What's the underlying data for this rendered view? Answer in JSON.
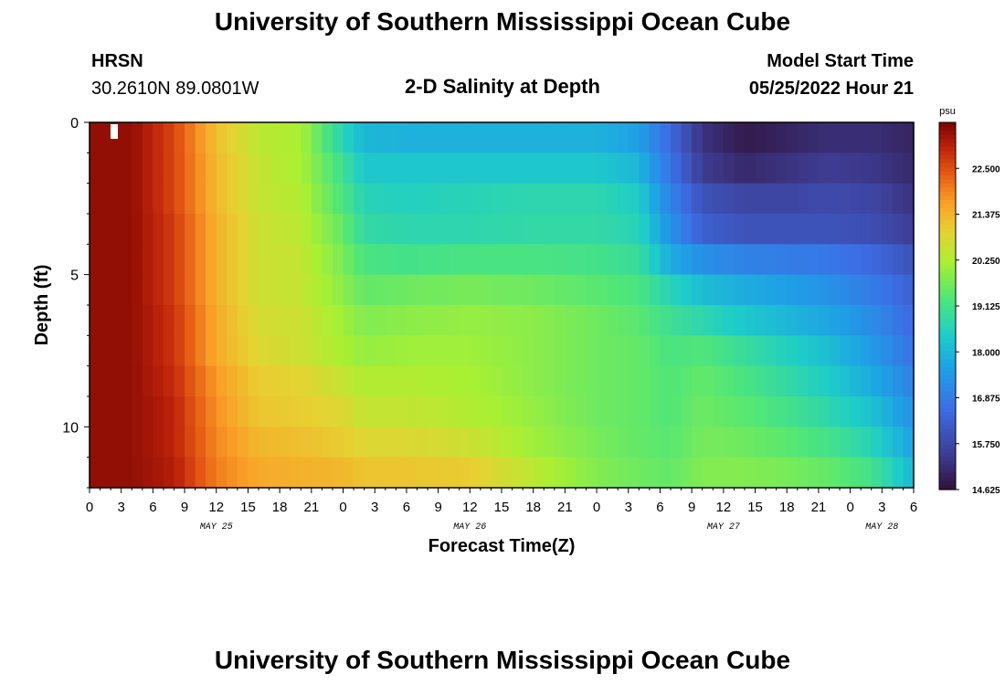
{
  "header": {
    "title": "University of Southern Mississippi Ocean Cube",
    "station": "HRSN",
    "coordinates": "30.2610N  89.0801W",
    "chart_title": "2-D Salinity at Depth",
    "model_start_label": "Model Start Time",
    "model_start_value": "05/25/2022 Hour 21"
  },
  "footer": {
    "title": "University of Southern Mississippi Ocean Cube"
  },
  "chart_data": {
    "type": "heatmap",
    "title": "2-D Salinity at Depth",
    "xlabel": "Forecast Time(Z)",
    "ylabel": "Depth (ft)",
    "x_hours": [
      0,
      78
    ],
    "x_tick_labels": [
      "0",
      "3",
      "6",
      "9",
      "12",
      "15",
      "18",
      "21",
      "0",
      "3",
      "6",
      "9",
      "12",
      "15",
      "18",
      "21",
      "0",
      "3",
      "6",
      "9",
      "12",
      "15",
      "18",
      "21",
      "0",
      "3",
      "6"
    ],
    "date_labels": [
      {
        "text": "MAY 25",
        "hour": 12
      },
      {
        "text": "MAY 26",
        "hour": 36
      },
      {
        "text": "MAY 27",
        "hour": 60
      },
      {
        "text": "MAY 28",
        "hour": 75
      }
    ],
    "ylim": [
      0,
      12
    ],
    "y_tick_labels": [
      "0",
      "5",
      "10"
    ],
    "y_tick_values": [
      0,
      5,
      10
    ],
    "colorbar": {
      "unit": "psu",
      "min": 14.625,
      "max": 23.625,
      "tick_labels": [
        "22.500",
        "21.375",
        "20.250",
        "19.125",
        "18.000",
        "16.875",
        "15.750",
        "14.625"
      ]
    },
    "salinity_keyframes": {
      "hours": [
        0,
        4,
        8,
        12,
        16,
        20,
        24,
        26,
        30,
        36,
        42,
        48,
        52,
        55,
        58,
        62,
        66,
        70,
        74,
        78
      ],
      "layers": [
        {
          "depth": 0.5,
          "values": [
            23.4,
            23.4,
            22.6,
            21.2,
            20.4,
            20.2,
            18.6,
            18.0,
            17.9,
            17.9,
            17.9,
            17.9,
            17.6,
            16.5,
            15.3,
            14.8,
            15.0,
            15.2,
            15.2,
            15.0
          ]
        },
        {
          "depth": 1.5,
          "values": [
            23.4,
            23.4,
            22.6,
            21.3,
            20.5,
            20.2,
            19.0,
            18.3,
            18.3,
            18.3,
            18.3,
            18.3,
            18.0,
            16.7,
            15.5,
            15.1,
            15.3,
            15.5,
            15.4,
            15.1
          ]
        },
        {
          "depth": 2.5,
          "values": [
            23.4,
            23.4,
            22.6,
            21.3,
            20.5,
            20.3,
            19.2,
            18.6,
            18.5,
            18.6,
            18.7,
            18.7,
            18.4,
            17.0,
            16.0,
            15.7,
            15.7,
            15.8,
            15.7,
            15.3
          ]
        },
        {
          "depth": 3.5,
          "values": [
            23.4,
            23.4,
            22.7,
            21.4,
            20.6,
            20.4,
            19.5,
            18.8,
            18.7,
            18.7,
            18.8,
            18.8,
            18.6,
            17.3,
            16.3,
            16.0,
            16.0,
            16.0,
            15.9,
            15.5
          ]
        },
        {
          "depth": 4.5,
          "values": [
            23.4,
            23.4,
            22.7,
            21.4,
            20.6,
            20.5,
            19.7,
            19.2,
            19.1,
            19.2,
            19.2,
            19.1,
            18.9,
            17.8,
            17.3,
            17.0,
            16.9,
            16.8,
            16.5,
            16.0
          ]
        },
        {
          "depth": 5.5,
          "values": [
            23.4,
            23.4,
            22.7,
            21.4,
            20.6,
            20.5,
            19.9,
            19.5,
            19.6,
            19.7,
            19.6,
            19.4,
            19.2,
            18.6,
            18.1,
            17.8,
            17.6,
            17.3,
            16.9,
            16.3
          ]
        },
        {
          "depth": 6.5,
          "values": [
            23.4,
            23.4,
            22.8,
            21.5,
            20.7,
            20.6,
            20.1,
            19.8,
            19.9,
            20.0,
            19.9,
            19.6,
            19.4,
            19.0,
            18.7,
            18.3,
            18.0,
            17.7,
            17.2,
            16.5
          ]
        },
        {
          "depth": 7.5,
          "values": [
            23.4,
            23.4,
            22.8,
            21.5,
            20.8,
            20.6,
            20.2,
            20.0,
            20.1,
            20.1,
            19.9,
            19.6,
            19.5,
            19.2,
            19.3,
            18.9,
            18.5,
            18.1,
            17.5,
            16.7
          ]
        },
        {
          "depth": 8.5,
          "values": [
            23.4,
            23.4,
            22.9,
            21.7,
            21.0,
            20.9,
            20.5,
            20.3,
            20.3,
            20.2,
            19.9,
            19.6,
            19.5,
            19.3,
            19.5,
            19.2,
            18.8,
            18.4,
            17.8,
            17.0
          ]
        },
        {
          "depth": 9.5,
          "values": [
            23.4,
            23.4,
            23.0,
            21.8,
            21.1,
            21.0,
            20.8,
            20.5,
            20.5,
            20.3,
            20.0,
            19.6,
            19.5,
            19.3,
            19.6,
            19.4,
            19.1,
            18.7,
            18.2,
            17.3
          ]
        },
        {
          "depth": 10.5,
          "values": [
            23.4,
            23.4,
            23.0,
            21.9,
            21.3,
            21.2,
            21.0,
            20.8,
            20.8,
            20.6,
            20.1,
            19.7,
            19.5,
            19.4,
            19.7,
            19.6,
            19.4,
            19.1,
            18.6,
            17.6
          ]
        },
        {
          "depth": 11.5,
          "values": [
            23.4,
            23.4,
            23.1,
            22.0,
            21.5,
            21.4,
            21.3,
            21.1,
            21.1,
            21.0,
            20.4,
            19.8,
            19.6,
            19.5,
            19.8,
            19.8,
            19.7,
            19.5,
            19.1,
            18.0
          ]
        }
      ]
    }
  }
}
